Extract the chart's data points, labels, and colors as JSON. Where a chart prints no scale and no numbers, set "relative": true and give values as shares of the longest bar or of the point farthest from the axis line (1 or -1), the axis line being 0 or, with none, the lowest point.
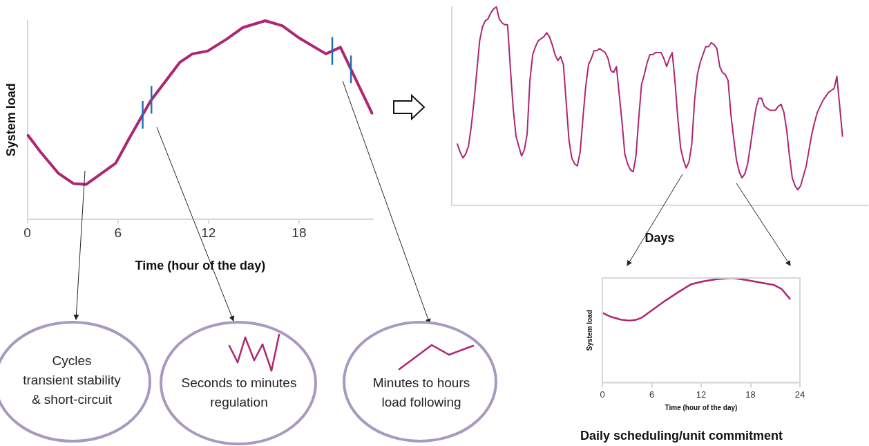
{
  "chart_data": [
    {
      "type": "line",
      "relative": true,
      "xlabel": "Time (hour of the day)",
      "ylabel": "System load",
      "xlim": [
        0,
        22.9
      ],
      "xticks": [
        0,
        6,
        12,
        18
      ],
      "tick_labels": "x",
      "grid": false,
      "legend": false,
      "marker": "none",
      "line_style": "solid",
      "series": [
        {
          "color": "#ae2573",
          "x": [
            0.05,
            0.89,
            2.06,
            3.07,
            3.9,
            5.86,
            6.75,
            8.17,
            10.1,
            10.94,
            11.94,
            13.2,
            14.29,
            15.76,
            16.88,
            18.05,
            19.78,
            20.74,
            22.83
          ],
          "values": [
            0.421,
            0.336,
            0.23,
            0.178,
            0.174,
            0.282,
            0.407,
            0.596,
            0.79,
            0.833,
            0.847,
            0.907,
            0.966,
            1,
            0.975,
            0.911,
            0.833,
            0.866,
            0.534
          ]
        }
      ],
      "ref_lines": [
        {
          "axis": "x",
          "value": 7.64,
          "color": "#1f6fb5"
        },
        {
          "axis": "x",
          "value": 8.22,
          "color": "#1f6fb5"
        },
        {
          "axis": "x",
          "value": 20.2,
          "color": "#1f6fb5"
        },
        {
          "axis": "x",
          "value": 21.44,
          "color": "#1f6fb5"
        }
      ],
      "annotations": [
        "Cycles\ntransient stability\n& short-circuit",
        "Seconds to minutes\nregulation",
        "Minutes to hours\nload following"
      ]
    },
    {
      "type": "line",
      "relative": true,
      "xlabel": "Days",
      "tick_labels": false,
      "grid": false,
      "legend": false,
      "marker": "none",
      "line_style": "solid",
      "categories": [
        null,
        null,
        null,
        null,
        null,
        null,
        null,
        null,
        null,
        null,
        null,
        null,
        null,
        null,
        null,
        null,
        null,
        null,
        null,
        null,
        null,
        null,
        null,
        null,
        null,
        null,
        null,
        null,
        null,
        null,
        null,
        null,
        null,
        null,
        null,
        null,
        null,
        null,
        null,
        null,
        null,
        null,
        null,
        null,
        null,
        null,
        null,
        null,
        null,
        null,
        null,
        null,
        null,
        null,
        null,
        null,
        null,
        null,
        null,
        null,
        null,
        null,
        null,
        null,
        null,
        null,
        null,
        null,
        null,
        null,
        null,
        null,
        null,
        null,
        null,
        null,
        null,
        null,
        null,
        null,
        null,
        null,
        null,
        null,
        null,
        null,
        null,
        null,
        null,
        null,
        null,
        null,
        null,
        null,
        null,
        null,
        null,
        null,
        null,
        null,
        null,
        null,
        null,
        null,
        null,
        null,
        null,
        null,
        null,
        null,
        null,
        null,
        null,
        null,
        null,
        null,
        null,
        null,
        null,
        null,
        null,
        null,
        null,
        null,
        null,
        null,
        null,
        null,
        null,
        null,
        null,
        null,
        null,
        null,
        null,
        null,
        null,
        null,
        null,
        null,
        null,
        null,
        null,
        null,
        null,
        null,
        null,
        null,
        null,
        null
      ],
      "series": [
        {
          "color": "#ae2573",
          "values": [
            null,
            null,
            0.31,
            0.27,
            0.24,
            0.26,
            0.3,
            0.4,
            0.53,
            0.68,
            0.83,
            0.9,
            0.93,
            0.94,
            0.97,
            0.99,
            1.0,
            0.94,
            0.92,
            0.91,
            0.91,
            0.69,
            0.49,
            0.35,
            0.3,
            0.25,
            0.28,
            0.36,
            0.63,
            0.76,
            0.8,
            0.83,
            0.84,
            0.85,
            0.87,
            0.85,
            0.81,
            0.76,
            0.73,
            0.75,
            0.71,
            0.52,
            0.33,
            0.24,
            0.21,
            0.2,
            0.27,
            0.44,
            0.6,
            0.71,
            0.74,
            0.78,
            0.78,
            0.79,
            0.78,
            0.77,
            0.74,
            0.68,
            0.67,
            0.7,
            0.56,
            0.42,
            0.26,
            0.21,
            0.18,
            0.17,
            0.25,
            0.44,
            0.61,
            0.66,
            0.72,
            0.76,
            0.76,
            0.77,
            0.77,
            0.77,
            0.74,
            0.7,
            0.74,
            0.77,
            0.62,
            0.44,
            0.29,
            0.23,
            0.19,
            0.22,
            0.31,
            0.53,
            0.66,
            0.72,
            0.76,
            0.8,
            0.8,
            0.82,
            0.81,
            0.79,
            0.7,
            0.67,
            0.66,
            0.63,
            0.46,
            0.34,
            0.23,
            0.17,
            0.14,
            0.16,
            0.21,
            0.3,
            0.4,
            0.49,
            0.54,
            0.54,
            0.5,
            0.49,
            0.48,
            0.48,
            0.48,
            0.5,
            0.51,
            0.47,
            0.38,
            0.25,
            0.14,
            0.1,
            0.08,
            0.1,
            0.15,
            0.2,
            0.28,
            0.36,
            0.42,
            0.47,
            0.5,
            0.53,
            0.55,
            0.57,
            0.58,
            0.59,
            0.65,
            0.5,
            0.35,
            null,
            null,
            null,
            null,
            null,
            null,
            null,
            null,
            null
          ]
        }
      ]
    },
    {
      "type": "line",
      "relative": true,
      "xlabel": "Time (hour of the day)",
      "ylabel": "System load",
      "xlim": [
        0,
        24
      ],
      "xticks": [
        0,
        6,
        12,
        18,
        24
      ],
      "tick_labels": "x",
      "grid": false,
      "legend": false,
      "marker": "none",
      "line_style": "solid",
      "series": [
        {
          "color": "#ae2573",
          "x": [
            0,
            1.01,
            2.23,
            3.3,
            4.07,
            4.74,
            5.9,
            7.74,
            9.27,
            10.8,
            12.32,
            13.85,
            15.84,
            17.52,
            19.36,
            20.89,
            21.8,
            22.78
          ],
          "values": [
            0.667,
            0.63,
            0.602,
            0.593,
            0.6,
            0.619,
            0.685,
            0.788,
            0.867,
            0.941,
            0.969,
            0.989,
            1,
            0.98,
            0.954,
            0.932,
            0.893,
            0.801
          ]
        }
      ],
      "annotations": [
        "Daily scheduling/unit commitment"
      ]
    }
  ]
}
